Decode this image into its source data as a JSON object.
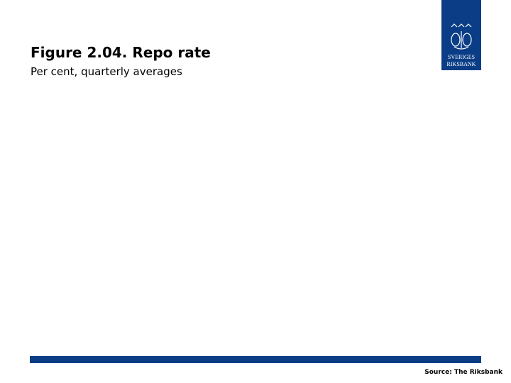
{
  "header": {
    "title": "Figure 2.04. Repo rate",
    "subtitle": "Per cent, quarterly averages"
  },
  "logo": {
    "line1": "SVERIGES",
    "line2": "RIKSBANK"
  },
  "footer": {
    "source": "Source: The Riksbank"
  }
}
